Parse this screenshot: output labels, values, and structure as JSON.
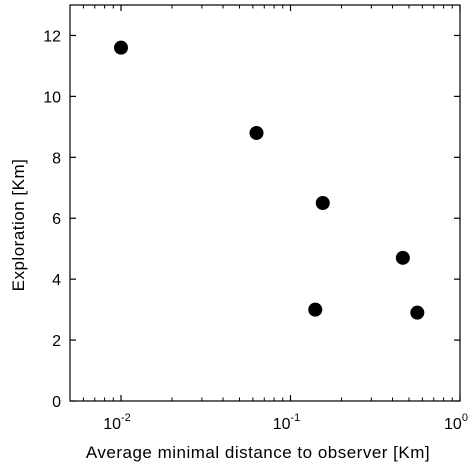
{
  "chart_data": {
    "type": "scatter",
    "title": "",
    "xlabel": "Average minimal distance to observer [Km]",
    "ylabel": "Exploration [Km]",
    "xscale": "log",
    "xlim": [
      0.005,
      1
    ],
    "ylim": [
      0,
      13
    ],
    "grid": false,
    "legend": "none",
    "x_ticks": [
      {
        "value": 0.01,
        "base": "10",
        "exp": "-2"
      },
      {
        "value": 0.1,
        "base": "10",
        "exp": "-1"
      },
      {
        "value": 1,
        "base": "10",
        "exp": "0"
      }
    ],
    "y_ticks": [
      0,
      2,
      4,
      6,
      8,
      10,
      12
    ],
    "marker_color": "#000000",
    "series": [
      {
        "points": [
          {
            "x": 0.01,
            "y": 11.6
          },
          {
            "x": 0.063,
            "y": 8.8
          },
          {
            "x": 0.155,
            "y": 6.5
          },
          {
            "x": 0.46,
            "y": 4.7
          },
          {
            "x": 0.14,
            "y": 3.0
          },
          {
            "x": 0.56,
            "y": 2.9
          }
        ]
      }
    ]
  }
}
